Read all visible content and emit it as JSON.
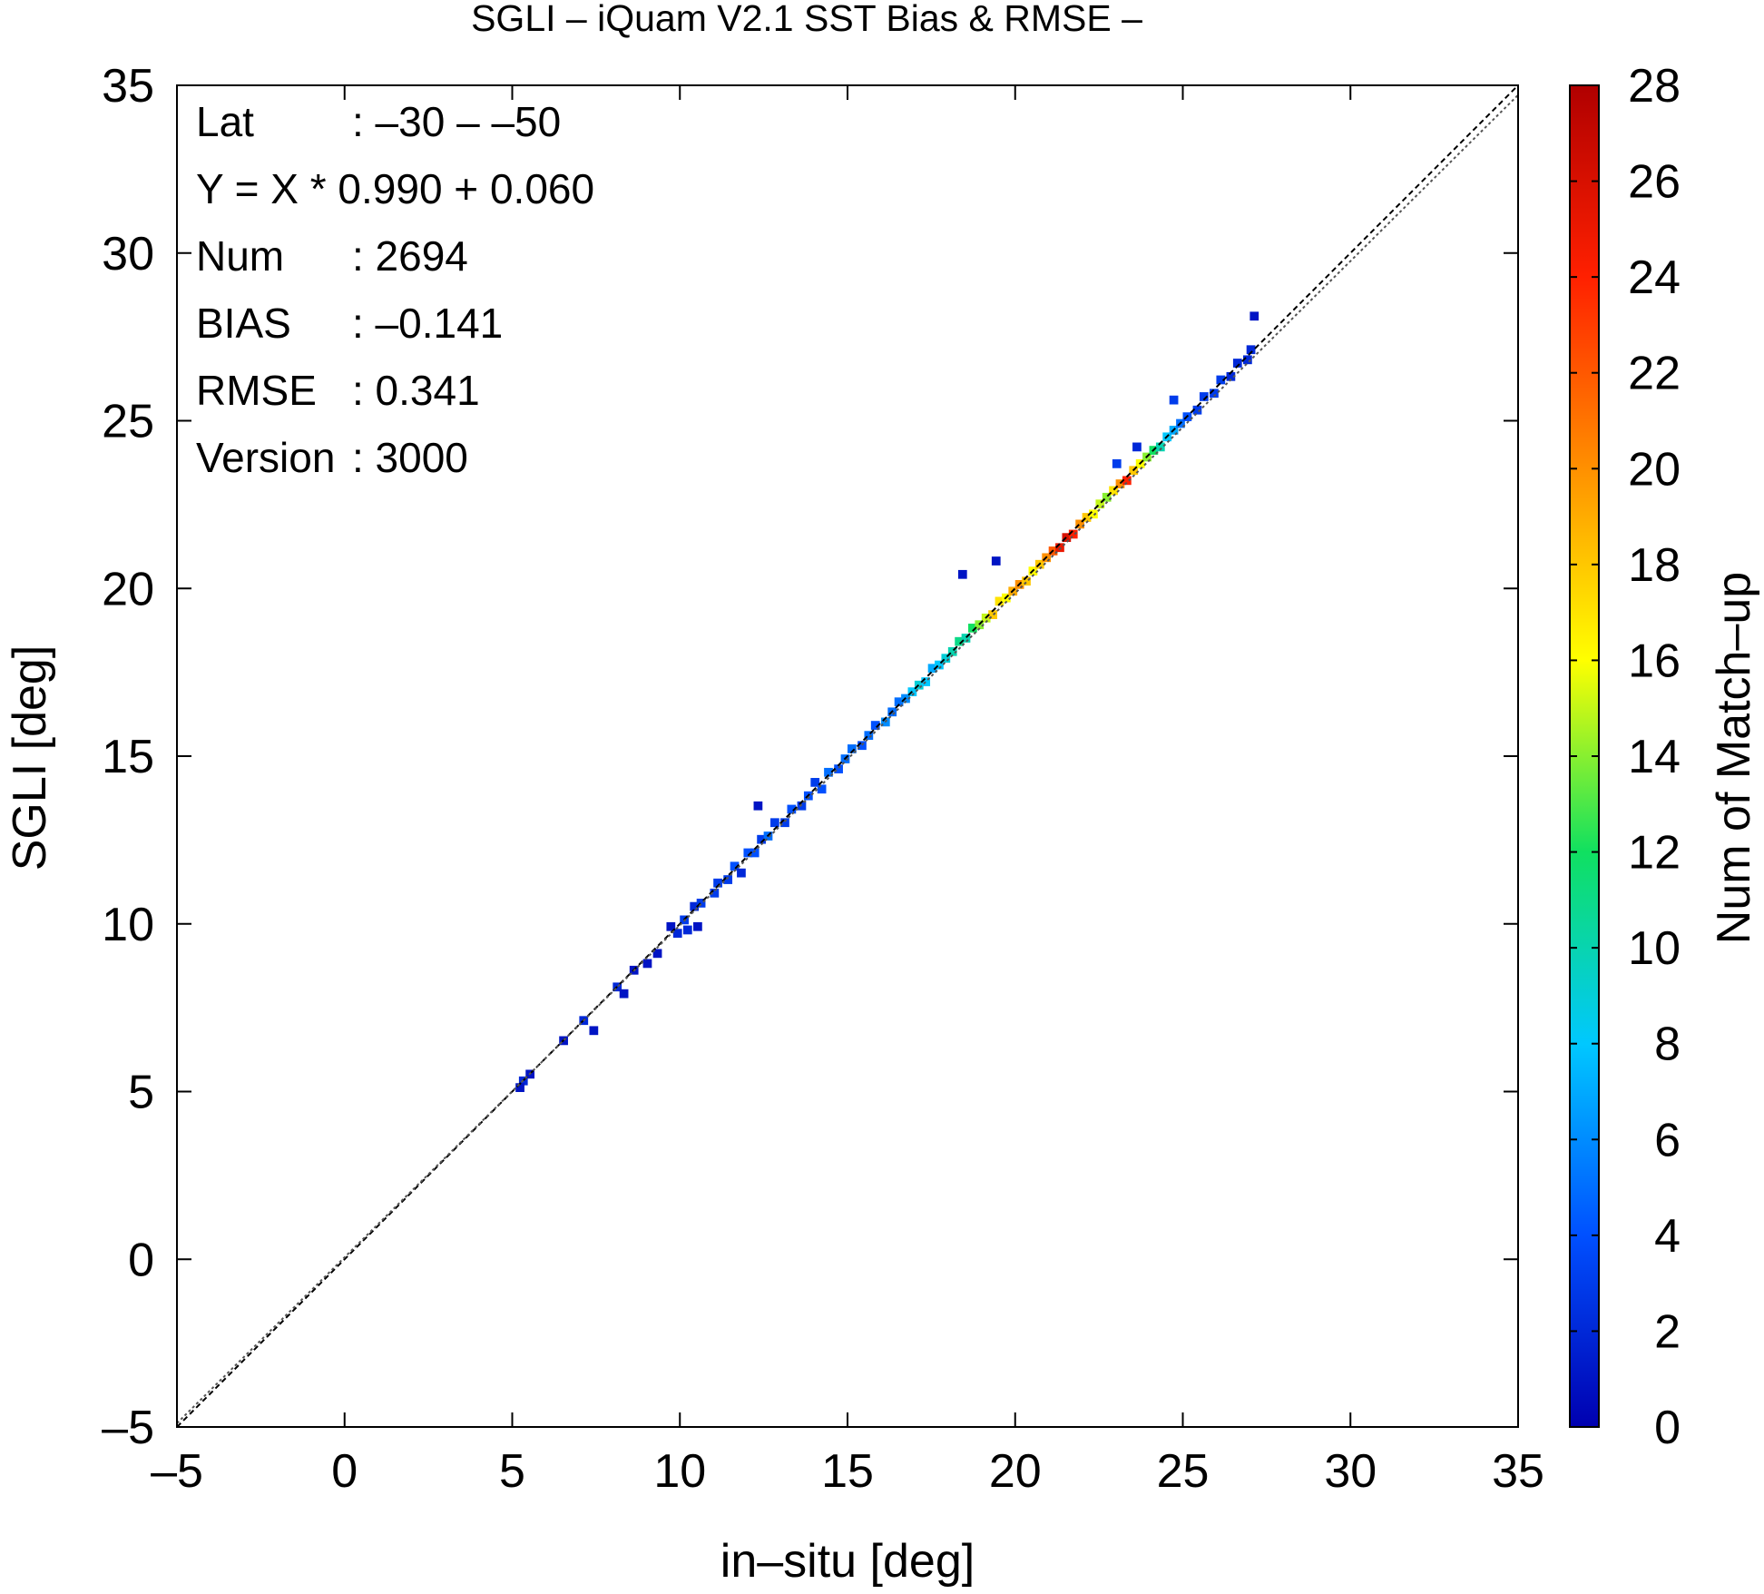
{
  "chart_data": {
    "type": "heatmap",
    "title": "SGLI – iQuam V2.1 SST Bias & RMSE  –",
    "xlabel": "in–situ [deg]",
    "ylabel": "SGLI [deg]",
    "xlim": [
      -5,
      35
    ],
    "ylim": [
      -5,
      35
    ],
    "xticks": [
      "–5",
      "0",
      "5",
      "10",
      "15",
      "20",
      "25",
      "30",
      "35"
    ],
    "yticks": [
      "–5",
      "0",
      "5",
      "10",
      "15",
      "20",
      "25",
      "30",
      "35"
    ],
    "grid": false,
    "colorbar": {
      "label": "Num of Match–up",
      "range": [
        0,
        28
      ],
      "ticks": [
        "0",
        "2",
        "4",
        "6",
        "8",
        "10",
        "12",
        "14",
        "16",
        "18",
        "20",
        "22",
        "24",
        "26",
        "28"
      ],
      "colors": [
        "#0000b0",
        "#0050ff",
        "#00c8ff",
        "#10e060",
        "#ffff00",
        "#ff9000",
        "#ff2000",
        "#b00000"
      ]
    },
    "stats": [
      {
        "key": "Lat",
        "value": ": –30 – –50"
      },
      {
        "key": "Y = X * 0.990 + 0.060",
        "value": ""
      },
      {
        "key": "Num",
        "value": ": 2694"
      },
      {
        "key": "BIAS",
        "value": ": –0.141"
      },
      {
        "key": "RMSE",
        "value": ": 0.341"
      },
      {
        "key": "Version",
        "value": ": 3000"
      }
    ],
    "lines": [
      {
        "kind": "identity",
        "slope": 1.0,
        "intercept": 0.0,
        "style": "dashed"
      },
      {
        "kind": "regression",
        "slope": 0.99,
        "intercept": 0.06,
        "style": "dotted"
      }
    ],
    "cell_size": 0.25,
    "cells": [
      [
        5.2,
        5.2,
        2
      ],
      [
        5.4,
        5.4,
        1
      ],
      [
        5.1,
        5.0,
        1
      ],
      [
        6.4,
        6.4,
        1
      ],
      [
        7.0,
        7.0,
        2
      ],
      [
        7.3,
        6.7,
        1
      ],
      [
        8.0,
        8.0,
        2
      ],
      [
        8.2,
        7.8,
        1
      ],
      [
        8.5,
        8.5,
        1
      ],
      [
        8.9,
        8.7,
        1
      ],
      [
        9.2,
        9.0,
        1
      ],
      [
        9.6,
        9.8,
        1
      ],
      [
        9.8,
        9.6,
        2
      ],
      [
        10.0,
        10.0,
        3
      ],
      [
        10.1,
        9.7,
        2
      ],
      [
        10.3,
        10.4,
        2
      ],
      [
        10.5,
        10.5,
        3
      ],
      [
        10.4,
        9.8,
        1
      ],
      [
        10.9,
        10.8,
        3
      ],
      [
        11.0,
        11.1,
        3
      ],
      [
        11.3,
        11.2,
        3
      ],
      [
        11.5,
        11.6,
        4
      ],
      [
        11.7,
        11.4,
        2
      ],
      [
        11.9,
        12.0,
        4
      ],
      [
        12.1,
        12.0,
        4
      ],
      [
        12.3,
        12.4,
        3
      ],
      [
        12.5,
        12.5,
        5
      ],
      [
        12.2,
        13.4,
        1
      ],
      [
        12.7,
        12.9,
        3
      ],
      [
        13.0,
        12.9,
        3
      ],
      [
        13.2,
        13.3,
        4
      ],
      [
        13.5,
        13.4,
        3
      ],
      [
        13.7,
        13.7,
        4
      ],
      [
        13.9,
        14.1,
        3
      ],
      [
        14.1,
        13.9,
        4
      ],
      [
        14.3,
        14.4,
        5
      ],
      [
        14.6,
        14.5,
        4
      ],
      [
        14.8,
        14.8,
        5
      ],
      [
        15.0,
        15.1,
        5
      ],
      [
        15.3,
        15.2,
        4
      ],
      [
        15.5,
        15.5,
        5
      ],
      [
        15.7,
        15.8,
        4
      ],
      [
        16.0,
        15.9,
        6
      ],
      [
        16.2,
        16.2,
        5
      ],
      [
        16.4,
        16.5,
        5
      ],
      [
        16.6,
        16.6,
        6
      ],
      [
        16.8,
        16.8,
        8
      ],
      [
        17.0,
        17.0,
        9
      ],
      [
        17.2,
        17.1,
        8
      ],
      [
        17.4,
        17.5,
        7
      ],
      [
        17.6,
        17.6,
        8
      ],
      [
        17.8,
        17.8,
        9
      ],
      [
        18.0,
        18.0,
        10
      ],
      [
        18.2,
        18.3,
        11
      ],
      [
        18.4,
        18.4,
        10
      ],
      [
        18.6,
        18.7,
        12
      ],
      [
        18.8,
        18.8,
        14
      ],
      [
        19.0,
        19.0,
        15
      ],
      [
        19.2,
        19.1,
        18
      ],
      [
        19.4,
        19.5,
        17
      ],
      [
        19.6,
        19.6,
        16
      ],
      [
        19.8,
        19.8,
        19
      ],
      [
        20.0,
        20.0,
        20
      ],
      [
        20.2,
        20.1,
        18
      ],
      [
        20.4,
        20.4,
        16
      ],
      [
        20.6,
        20.6,
        18
      ],
      [
        20.8,
        20.8,
        20
      ],
      [
        21.0,
        21.0,
        22
      ],
      [
        21.2,
        21.1,
        25
      ],
      [
        21.4,
        21.4,
        26
      ],
      [
        21.6,
        21.5,
        24
      ],
      [
        21.8,
        21.8,
        20
      ],
      [
        22.0,
        22.0,
        18
      ],
      [
        22.2,
        22.1,
        16
      ],
      [
        22.4,
        22.4,
        15
      ],
      [
        22.6,
        22.6,
        14
      ],
      [
        22.8,
        22.8,
        17
      ],
      [
        23.0,
        23.0,
        20
      ],
      [
        23.2,
        23.1,
        24
      ],
      [
        23.4,
        23.4,
        18
      ],
      [
        23.6,
        23.6,
        16
      ],
      [
        23.8,
        23.8,
        14
      ],
      [
        24.0,
        24.0,
        12
      ],
      [
        24.2,
        24.1,
        10
      ],
      [
        24.4,
        24.4,
        8
      ],
      [
        24.6,
        24.6,
        7
      ],
      [
        24.8,
        24.8,
        5
      ],
      [
        25.0,
        25.0,
        4
      ],
      [
        25.3,
        25.2,
        3
      ],
      [
        25.5,
        25.6,
        3
      ],
      [
        25.8,
        25.7,
        3
      ],
      [
        26.0,
        26.1,
        3
      ],
      [
        26.3,
        26.2,
        2
      ],
      [
        26.5,
        26.6,
        2
      ],
      [
        26.8,
        26.7,
        2
      ],
      [
        26.9,
        27.0,
        2
      ],
      [
        27.0,
        28.0,
        1
      ],
      [
        23.5,
        24.1,
        2
      ],
      [
        22.9,
        23.6,
        3
      ],
      [
        24.6,
        25.5,
        3
      ],
      [
        18.3,
        20.3,
        1
      ],
      [
        19.3,
        20.7,
        1
      ]
    ]
  }
}
